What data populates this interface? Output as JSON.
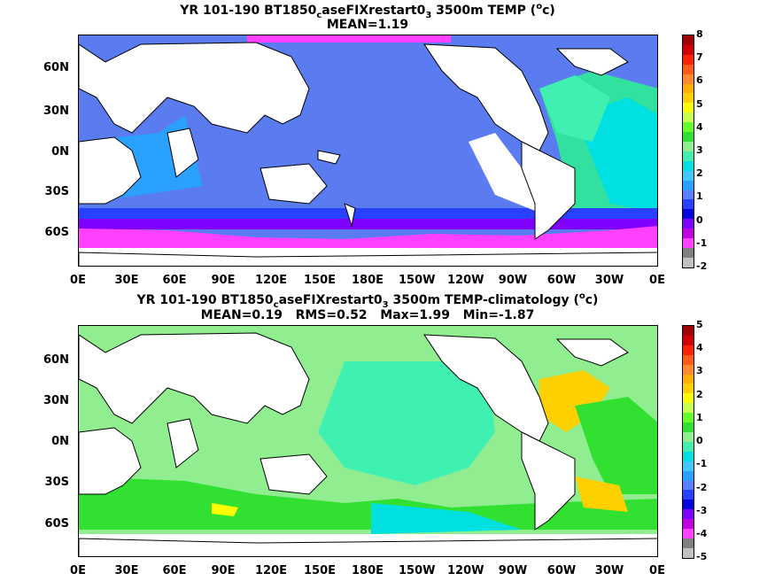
{
  "panels": [
    {
      "title_parts": [
        "YR 101-190 BT1850",
        "c",
        "aseFIXrestart0",
        "3",
        " 3500m TEMP (",
        "o",
        "c)"
      ],
      "stats": "MEAN=1.19",
      "lat_labels": [
        "60N",
        "30N",
        "0N",
        "30S",
        "60S"
      ],
      "lon_labels": [
        "0E",
        "30E",
        "60E",
        "90E",
        "120E",
        "150E",
        "180E",
        "150W",
        "120W",
        "90W",
        "60W",
        "30W",
        "0E"
      ],
      "colorbar_labels": [
        "8",
        "7",
        "6",
        "5",
        "4",
        "3",
        "2",
        "1",
        "0",
        "-1",
        "-2"
      ],
      "colorbar_colors": [
        "#a00000",
        "#d00000",
        "#ff2000",
        "#ff5a1a",
        "#ff8a2a",
        "#ffb000",
        "#ffd000",
        "#ffff00",
        "#c8ff50",
        "#64ff28",
        "#32e032",
        "#90ee90",
        "#40f0b0",
        "#00e0e0",
        "#40c8ff",
        "#2aa0ff",
        "#5a80ff",
        "#2a40ff",
        "#0000e0",
        "#8000ff",
        "#c000e0",
        "#ff40ff",
        "#808080",
        "#c0c0c0"
      ]
    },
    {
      "title_parts": [
        "YR 101-190 BT1850",
        "c",
        "aseFIXrestart0",
        "3",
        " 3500m TEMP-climatology (",
        "o",
        "c)"
      ],
      "stats": "MEAN=0.19   RMS=0.52   Max=1.99   Min=-1.87",
      "lat_labels": [
        "60N",
        "30N",
        "0N",
        "30S",
        "60S"
      ],
      "lon_labels": [
        "0E",
        "30E",
        "60E",
        "90E",
        "120E",
        "150E",
        "180E",
        "150W",
        "120W",
        "90W",
        "60W",
        "30W",
        "0E"
      ],
      "colorbar_labels": [
        "5",
        "4",
        "3",
        "2",
        "1",
        "0",
        "-1",
        "-2",
        "-3",
        "-4",
        "-5"
      ],
      "colorbar_colors": [
        "#a00000",
        "#d00000",
        "#ff2000",
        "#ff5a1a",
        "#ff8a2a",
        "#ffb000",
        "#ffd000",
        "#ffff00",
        "#c8ff50",
        "#64ff28",
        "#32e032",
        "#90ee90",
        "#40f0b0",
        "#00e0e0",
        "#40c8ff",
        "#2aa0ff",
        "#5a80ff",
        "#2a40ff",
        "#0000e0",
        "#8000ff",
        "#c000e0",
        "#ff40ff",
        "#808080",
        "#c0c0c0"
      ]
    }
  ]
}
